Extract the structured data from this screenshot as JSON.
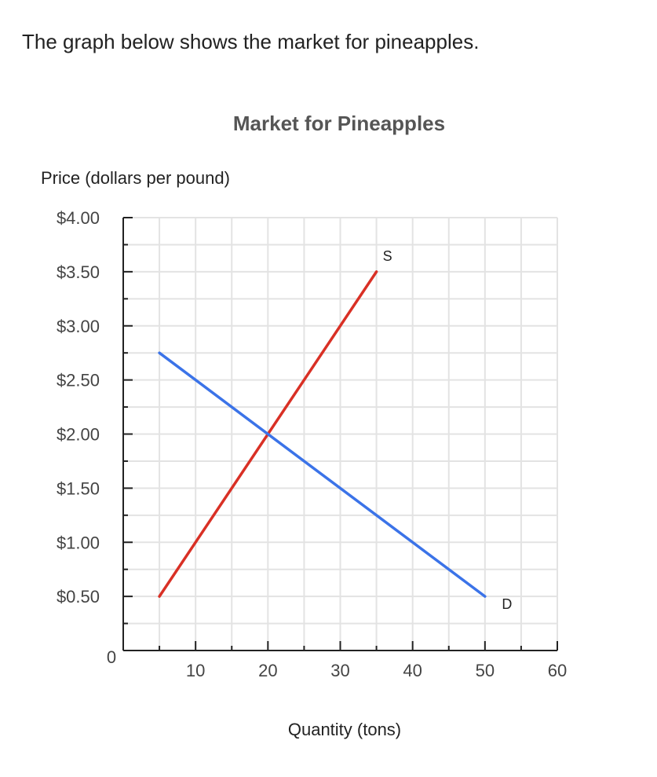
{
  "question": {
    "text": "The graph below shows the market for pineapples."
  },
  "chart_data": {
    "type": "line",
    "title": "Market for Pineapples",
    "ylabel": "Price (dollars per pound)",
    "xlabel": "Quantity (tons)",
    "xlim": [
      0,
      60
    ],
    "ylim": [
      0,
      4
    ],
    "x_ticks": [
      10,
      20,
      30,
      40,
      50,
      60
    ],
    "x_tick_labels": [
      "10",
      "20",
      "30",
      "40",
      "50",
      "60"
    ],
    "y_ticks": [
      0.5,
      1.0,
      1.5,
      2.0,
      2.5,
      3.0,
      3.5,
      4.0
    ],
    "y_tick_labels": [
      "$0.50",
      "$1.00",
      "$1.50",
      "$2.00",
      "$2.50",
      "$3.00",
      "$3.50",
      "$4.00"
    ],
    "origin_label": "0",
    "grid": true,
    "series": [
      {
        "name": "S",
        "color": "#d93025",
        "points": [
          [
            5,
            0.5
          ],
          [
            35,
            3.5
          ]
        ]
      },
      {
        "name": "D",
        "color": "#3b73e8",
        "points": [
          [
            5,
            2.75
          ],
          [
            50,
            0.5
          ]
        ]
      }
    ]
  }
}
